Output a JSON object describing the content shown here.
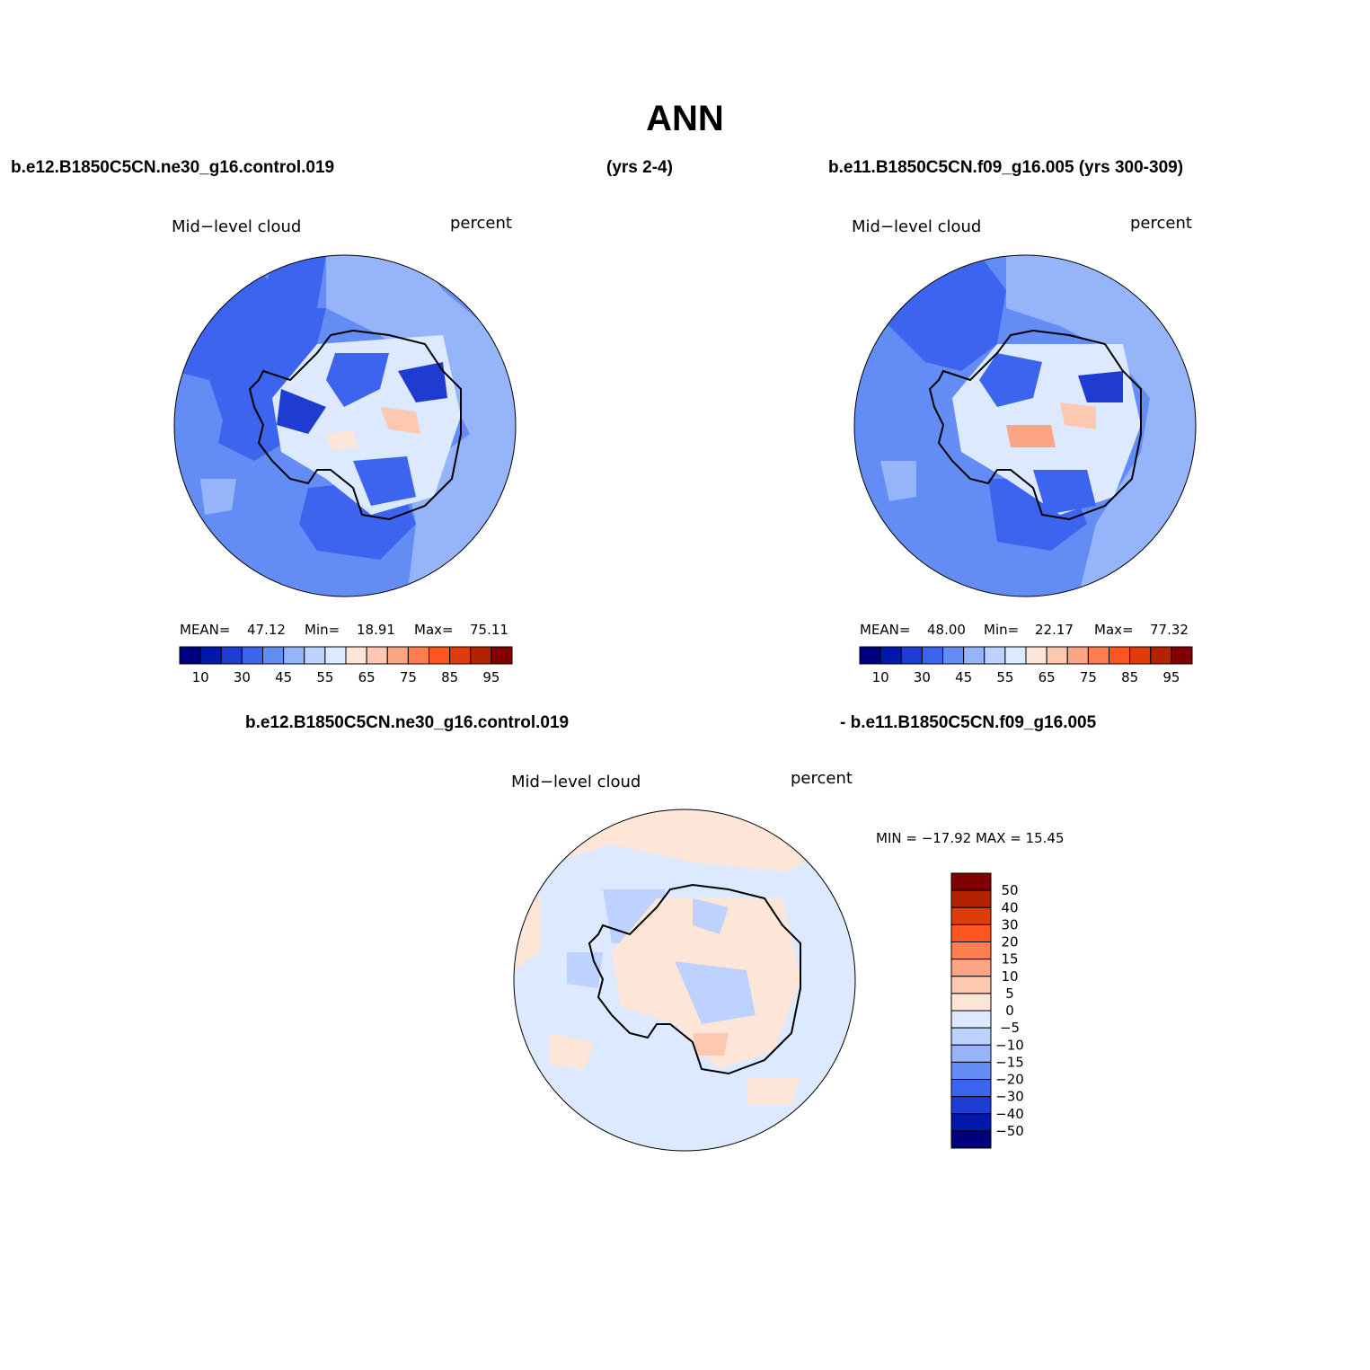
{
  "title": "ANN",
  "headers": {
    "left": "b.e12.B1850C5CN.ne30_g16.control.019",
    "mid": "(yrs 2-4)",
    "right": "b.e11.B1850C5CN.f09_g16.005 (yrs 300-309)",
    "diff_left": "b.e12.B1850C5CN.ne30_g16.control.019",
    "diff_right": "- b.e11.B1850C5CN.f09_g16.005"
  },
  "panels": [
    {
      "variable": "Mid−level cloud",
      "units": "percent",
      "stats": {
        "mean_label": "MEAN=",
        "mean": "47.12",
        "min_label": "Min=",
        "min": "18.91",
        "max_label": "Max=",
        "max": "75.11"
      }
    },
    {
      "variable": "Mid−level cloud",
      "units": "percent",
      "stats": {
        "mean_label": "MEAN=",
        "mean": "48.00",
        "min_label": "Min=",
        "min": "22.17",
        "max_label": "Max=",
        "max": "77.32"
      }
    }
  ],
  "diff_panel": {
    "variable": "Mid−level cloud",
    "units": "percent",
    "minmax": "MIN = −17.92 MAX =  15.45"
  },
  "colorbar_abs": {
    "colors": [
      "#00007f",
      "#0019aa",
      "#1e3cd2",
      "#3c64ef",
      "#648cf5",
      "#96b4fa",
      "#bed2ff",
      "#dce9ff",
      "#fde6d8",
      "#fcc8b0",
      "#fba584",
      "#ff7e50",
      "#ff5521",
      "#e03c0a",
      "#b42300",
      "#820000"
    ],
    "labels": [
      "10",
      "30",
      "45",
      "55",
      "65",
      "75",
      "85",
      "95"
    ]
  },
  "colorbar_diff": {
    "colors": [
      "#820000",
      "#b42300",
      "#e03c0a",
      "#ff5521",
      "#ff7e50",
      "#fba584",
      "#fcc8b0",
      "#fde6d8",
      "#dce9ff",
      "#bed2ff",
      "#96b4fa",
      "#648cf5",
      "#3c64ef",
      "#1e3cd2",
      "#0019aa",
      "#00007f"
    ],
    "labels": [
      "50",
      "40",
      "30",
      "20",
      "15",
      "10",
      "5",
      "0",
      "−5",
      "−10",
      "−15",
      "−20",
      "−30",
      "−40",
      "−50"
    ]
  }
}
